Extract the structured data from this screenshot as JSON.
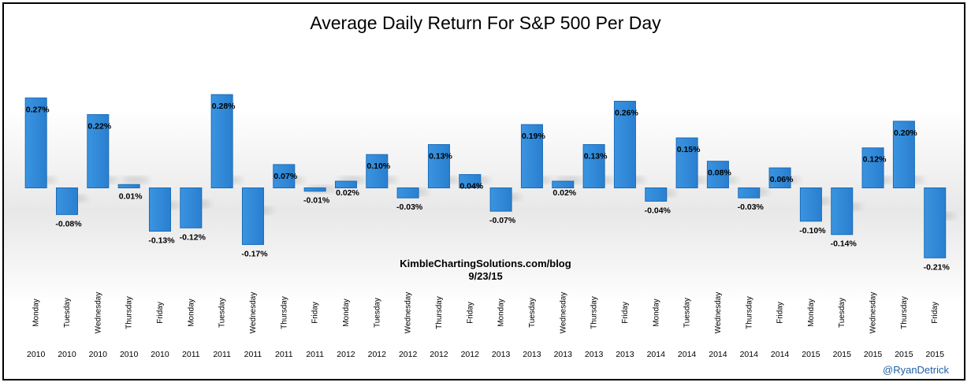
{
  "chart_data": {
    "type": "bar",
    "title": "Average Daily Return For S&P 500 Per Day",
    "categories": [
      {
        "day": "Monday",
        "year": "2010"
      },
      {
        "day": "Tuesday",
        "year": "2010"
      },
      {
        "day": "Wednesday",
        "year": "2010"
      },
      {
        "day": "Thursday",
        "year": "2010"
      },
      {
        "day": "Friday",
        "year": "2010"
      },
      {
        "day": "Monday",
        "year": "2011"
      },
      {
        "day": "Tuesday",
        "year": "2011"
      },
      {
        "day": "Wednesday",
        "year": "2011"
      },
      {
        "day": "Thursday",
        "year": "2011"
      },
      {
        "day": "Friday",
        "year": "2011"
      },
      {
        "day": "Monday",
        "year": "2012"
      },
      {
        "day": "Tuesday",
        "year": "2012"
      },
      {
        "day": "Wednesday",
        "year": "2012"
      },
      {
        "day": "Thursday",
        "year": "2012"
      },
      {
        "day": "Friday",
        "year": "2012"
      },
      {
        "day": "Monday",
        "year": "2013"
      },
      {
        "day": "Tuesday",
        "year": "2013"
      },
      {
        "day": "Wednesday",
        "year": "2013"
      },
      {
        "day": "Thursday",
        "year": "2013"
      },
      {
        "day": "Friday",
        "year": "2013"
      },
      {
        "day": "Monday",
        "year": "2014"
      },
      {
        "day": "Tuesday",
        "year": "2014"
      },
      {
        "day": "Wednesday",
        "year": "2014"
      },
      {
        "day": "Thursday",
        "year": "2014"
      },
      {
        "day": "Friday",
        "year": "2014"
      },
      {
        "day": "Monday",
        "year": "2015"
      },
      {
        "day": "Tuesday",
        "year": "2015"
      },
      {
        "day": "Wednesday",
        "year": "2015"
      },
      {
        "day": "Thursday",
        "year": "2015"
      },
      {
        "day": "Friday",
        "year": "2015"
      }
    ],
    "values": [
      0.27,
      -0.08,
      0.22,
      0.01,
      -0.13,
      -0.12,
      0.28,
      -0.17,
      0.07,
      -0.01,
      0.02,
      0.1,
      -0.03,
      0.13,
      0.04,
      -0.07,
      0.19,
      0.02,
      0.13,
      0.26,
      -0.04,
      0.15,
      0.08,
      -0.03,
      0.06,
      -0.1,
      -0.14,
      0.12,
      0.2,
      -0.21
    ],
    "data_labels": [
      "0.27%",
      "-0.08%",
      "0.22%",
      "0.01%",
      "-0.13%",
      "-0.12%",
      "0.28%",
      "-0.17%",
      "0.07%",
      "-0.01%",
      "0.02%",
      "0.10%",
      "-0.03%",
      "0.13%",
      "0.04%",
      "-0.07%",
      "0.19%",
      "0.02%",
      "0.13%",
      "0.26%",
      "-0.04%",
      "0.15%",
      "0.08%",
      "-0.03%",
      "0.06%",
      "-0.10%",
      "-0.14%",
      "0.12%",
      "0.20%",
      "-0.21%"
    ],
    "grid": false,
    "legend": "none",
    "bar_color": "#2e86d6",
    "bar_edge_color": "#1a6bb8"
  },
  "annotation": {
    "source": "KimbleChartingSolutions.com/blog",
    "date": "9/23/15"
  },
  "credit": "@RyanDetrick"
}
